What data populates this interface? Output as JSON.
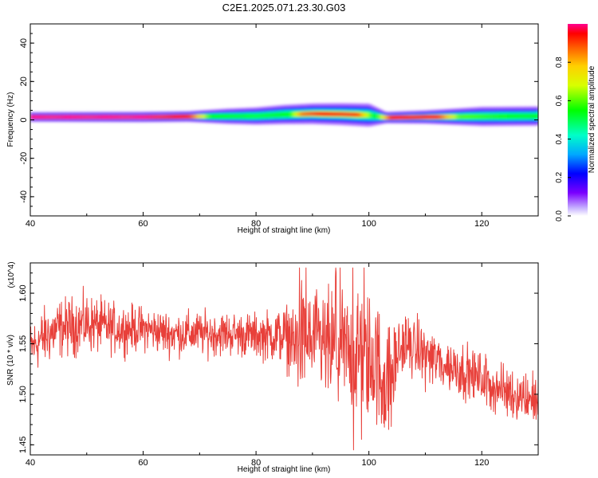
{
  "title": "C2E1.2025.071.23.30.G03",
  "chart_data": [
    {
      "type": "heatmap",
      "xlabel": "Height of straight line (km)",
      "ylabel": "Frequency (Hz)",
      "xlim": [
        40,
        130
      ],
      "ylim": [
        -50,
        50
      ],
      "xticks": [
        40,
        60,
        80,
        100,
        120
      ],
      "yticks": [
        -40,
        -20,
        0,
        20,
        40
      ],
      "colorbar": {
        "label": "Normalized spectral amplitude",
        "range": [
          0,
          1
        ],
        "ticks": [
          "0.0",
          "0.2",
          "0.4",
          "0.6",
          "0.8"
        ]
      },
      "band": {
        "center_hz": [
          [
            40,
            1.5
          ],
          [
            50,
            1.5
          ],
          [
            60,
            1.5
          ],
          [
            70,
            1.8
          ],
          [
            80,
            2.0
          ],
          [
            85,
            2.8
          ],
          [
            90,
            3.2
          ],
          [
            95,
            3.0
          ],
          [
            100,
            2.5
          ],
          [
            103,
            1.2
          ],
          [
            110,
            1.5
          ],
          [
            120,
            1.8
          ],
          [
            130,
            2.0
          ]
        ],
        "peak_amplitude": [
          [
            40,
            1.0
          ],
          [
            60,
            1.0
          ],
          [
            68,
            0.95
          ],
          [
            72,
            0.55
          ],
          [
            80,
            0.5
          ],
          [
            86,
            0.55
          ],
          [
            88,
            0.85
          ],
          [
            92,
            0.95
          ],
          [
            98,
            0.9
          ],
          [
            101,
            0.5
          ],
          [
            104,
            0.95
          ],
          [
            112,
            0.95
          ],
          [
            116,
            0.6
          ],
          [
            125,
            0.55
          ],
          [
            130,
            0.55
          ]
        ],
        "halo_width_hz": [
          [
            40,
            2.5
          ],
          [
            68,
            2.8
          ],
          [
            75,
            4.0
          ],
          [
            85,
            5.0
          ],
          [
            92,
            5.5
          ],
          [
            100,
            6.0
          ],
          [
            103,
            3.0
          ],
          [
            110,
            3.5
          ],
          [
            120,
            5.0
          ],
          [
            130,
            5.0
          ]
        ]
      }
    },
    {
      "type": "line",
      "xlabel": "Height of straight line (km)",
      "ylabel": "SNR (10 * v/v)",
      "y_multiplier": "(x10^4)",
      "xlim": [
        40,
        130
      ],
      "ylim": [
        1.44,
        1.63
      ],
      "xticks": [
        40,
        60,
        80,
        100,
        120
      ],
      "yticks": [
        "1.45",
        "1.50",
        "1.55",
        "1.60"
      ],
      "color": "#e8403a",
      "series": [
        {
          "x": [
            40,
            42,
            45,
            50,
            55,
            60,
            65,
            70,
            75,
            80,
            85,
            87,
            88,
            90,
            93,
            95,
            97,
            99,
            101,
            103,
            104,
            105,
            106,
            108,
            110,
            113,
            116,
            120,
            123,
            126,
            130
          ],
          "y_mean": [
            1.545,
            1.555,
            1.565,
            1.57,
            1.565,
            1.565,
            1.56,
            1.56,
            1.56,
            1.558,
            1.558,
            1.55,
            1.56,
            1.55,
            1.545,
            1.545,
            1.54,
            1.535,
            1.535,
            1.51,
            1.515,
            1.54,
            1.55,
            1.545,
            1.54,
            1.53,
            1.525,
            1.515,
            1.505,
            1.5,
            1.495
          ],
          "y_noise": [
            0.018,
            0.02,
            0.02,
            0.02,
            0.017,
            0.015,
            0.015,
            0.015,
            0.015,
            0.015,
            0.02,
            0.03,
            0.035,
            0.035,
            0.04,
            0.04,
            0.04,
            0.045,
            0.045,
            0.04,
            0.035,
            0.025,
            0.02,
            0.02,
            0.02,
            0.02,
            0.018,
            0.018,
            0.018,
            0.018,
            0.018
          ],
          "max": 1.625,
          "min": 1.445
        }
      ]
    }
  ]
}
